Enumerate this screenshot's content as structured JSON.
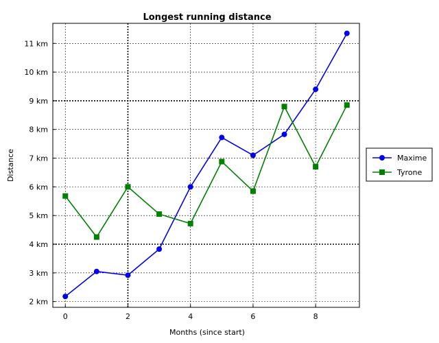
{
  "chart_data": {
    "type": "line",
    "title": "Longest running distance",
    "xlabel": "Months (since start)",
    "ylabel": "Distance",
    "xlim": [
      -0.4,
      9.4
    ],
    "ylim": [
      1.8,
      11.7
    ],
    "xticks": [
      0,
      2,
      4,
      6,
      8
    ],
    "xtick_labels": [
      "0",
      "2",
      "4",
      "6",
      "8"
    ],
    "yticks": [
      2,
      3,
      4,
      5,
      6,
      7,
      8,
      9,
      10,
      11
    ],
    "ytick_labels": [
      "2 km",
      "3 km",
      "4 km",
      "5 km",
      "6 km",
      "7 km",
      "8 km",
      "9 km",
      "10 km",
      "11 km"
    ],
    "grid": true,
    "emphasized_grid": {
      "x": [
        2
      ],
      "y": [
        4,
        9
      ]
    },
    "legend_position": "right",
    "x": [
      0,
      1,
      2,
      3,
      4,
      5,
      6,
      7,
      8,
      9
    ],
    "series": [
      {
        "name": "Maxime",
        "color": "#0000ee",
        "marker": "circle",
        "values": [
          2.18,
          3.05,
          2.92,
          3.83,
          6.0,
          7.72,
          7.1,
          7.83,
          9.4,
          11.35
        ]
      },
      {
        "name": "Tyrone",
        "color": "#008000",
        "marker": "square",
        "values": [
          5.68,
          4.25,
          6.0,
          5.05,
          4.72,
          6.88,
          5.85,
          8.8,
          6.7,
          8.85
        ]
      }
    ]
  }
}
